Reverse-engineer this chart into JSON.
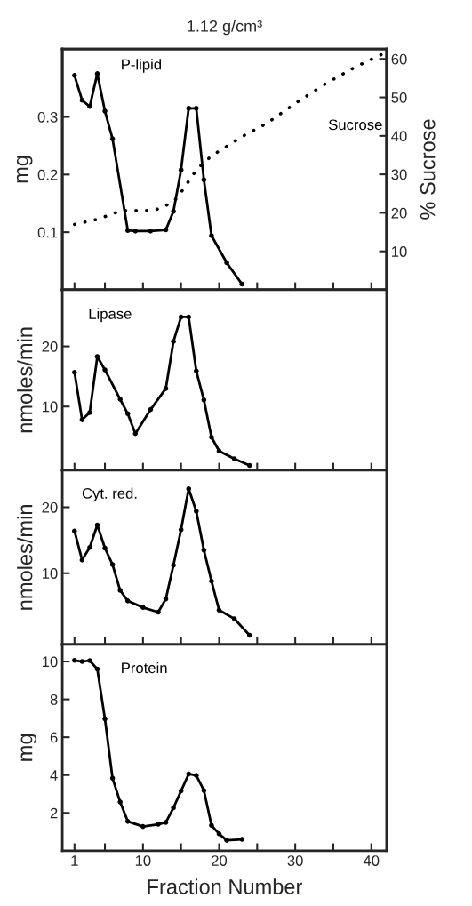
{
  "chart_data": [
    {
      "type": "line",
      "title": "1.12 g/cm³",
      "ylabel": "mg",
      "y2label": "% Sucrose",
      "xlim": [
        -0.6,
        42
      ],
      "xticks": [
        1,
        {
          "value": 5,
          "label": null
        },
        10,
        {
          "value": 15,
          "label": null
        },
        20,
        {
          "value": 25,
          "label": null
        },
        30,
        {
          "value": 35,
          "label": null
        },
        40
      ],
      "ylim": [
        0,
        0.418
      ],
      "yticks": [
        0.1,
        0.2,
        0.3
      ],
      "y2lim": [
        0,
        62.6
      ],
      "y2ticks": [
        10,
        20,
        30,
        40,
        50,
        60
      ],
      "tick_labels": "y",
      "marker": "circle",
      "line_style": "solid",
      "series": [
        {
          "name": "P-lipid",
          "color": "#000000",
          "x": [
            1,
            2,
            3,
            4,
            5,
            6,
            8,
            9,
            11,
            13,
            14,
            15,
            16,
            17,
            18,
            19,
            21,
            23
          ],
          "values": [
            0.372,
            0.329,
            0.318,
            0.375,
            0.31,
            0.262,
            0.103,
            0.102,
            0.102,
            0.104,
            0.136,
            0.208,
            0.315,
            0.315,
            0.191,
            0.094,
            0.047,
            0.01
          ]
        },
        {
          "name": "Sucrose",
          "color": "#000000",
          "axis": "y2",
          "marker": "none",
          "line_style": "dotted",
          "x": [
            1,
            4,
            7.2,
            11,
            12.2,
            13.2,
            14.2,
            15.1,
            17.1,
            19,
            23.1,
            26.3,
            30.2,
            34.1,
            38,
            41.3
          ],
          "values": [
            17,
            18.3,
            20.6,
            20.6,
            21.1,
            22.1,
            23.3,
            25.6,
            31.4,
            34.8,
            39.9,
            43.3,
            48.7,
            53.7,
            58,
            61.1
          ]
        }
      ]
    },
    {
      "type": "line",
      "ylabel": "nmoles/min",
      "xlim": [
        -0.6,
        42
      ],
      "xticks": [
        1,
        {
          "value": 5,
          "label": null
        },
        10,
        {
          "value": 15,
          "label": null
        },
        20,
        {
          "value": 25,
          "label": null
        },
        30,
        {
          "value": 35,
          "label": null
        },
        40
      ],
      "ylim": [
        -0.6,
        29.4
      ],
      "yticks": [
        10,
        20
      ],
      "tick_labels": "y",
      "marker": "circle",
      "line_style": "solid",
      "series": [
        {
          "name": "Lipase",
          "color": "#000000",
          "x": [
            1,
            2,
            3,
            4,
            5,
            7,
            8,
            9,
            11,
            13,
            14,
            15,
            16,
            17,
            18,
            19,
            20,
            22,
            24
          ],
          "values": [
            15.7,
            7.8,
            9.0,
            18.3,
            16.1,
            11.2,
            8.8,
            5.5,
            9.5,
            13.0,
            20.8,
            24.9,
            24.9,
            15.9,
            11.1,
            4.9,
            2.6,
            1.3,
            0.2
          ]
        }
      ]
    },
    {
      "type": "line",
      "ylabel": "nmoles/min",
      "xlim": [
        -0.6,
        42
      ],
      "xticks": [
        1,
        {
          "value": 5,
          "label": null
        },
        10,
        {
          "value": 15,
          "label": null
        },
        20,
        {
          "value": 25,
          "label": null
        },
        30,
        {
          "value": 35,
          "label": null
        },
        40
      ],
      "ylim": [
        -0.8,
        25.6
      ],
      "yticks": [
        10,
        20
      ],
      "tick_labels": "y",
      "marker": "circle",
      "line_style": "solid",
      "series": [
        {
          "name": "Cyt. red.",
          "color": "#000000",
          "x": [
            1,
            2,
            3,
            4,
            5,
            6,
            7,
            8,
            10,
            12,
            13,
            14,
            15,
            16,
            17,
            18,
            19,
            20,
            22,
            24
          ],
          "values": [
            16.4,
            12.0,
            13.9,
            17.3,
            13.8,
            11.3,
            7.4,
            5.8,
            4.8,
            4.1,
            6.1,
            11.2,
            16.6,
            22.8,
            19.4,
            13.5,
            8.8,
            4.4,
            3.1,
            0.6
          ]
        }
      ]
    },
    {
      "type": "line",
      "ylabel": "mg",
      "xlabel": "Fraction Number",
      "xlim": [
        -0.6,
        42
      ],
      "xticks": [
        1,
        {
          "value": 5,
          "label": null
        },
        10,
        {
          "value": 15,
          "label": null
        },
        20,
        {
          "value": 25,
          "label": null
        },
        30,
        {
          "value": 35,
          "label": null
        },
        40
      ],
      "ylim": [
        0,
        10.9
      ],
      "yticks": [
        2,
        4,
        6,
        8,
        10
      ],
      "marker": "circle",
      "line_style": "solid",
      "series": [
        {
          "name": "Protein",
          "color": "#000000",
          "x": [
            1,
            2,
            3,
            4,
            5,
            6,
            7,
            8,
            10,
            12,
            13,
            14,
            15,
            16,
            17,
            18,
            19,
            20,
            21,
            23
          ],
          "values": [
            10.06,
            10.0,
            10.05,
            9.6,
            6.97,
            3.83,
            2.58,
            1.55,
            1.28,
            1.4,
            1.5,
            2.27,
            3.16,
            4.06,
            3.98,
            3.19,
            1.34,
            0.89,
            0.55,
            0.6
          ]
        }
      ]
    }
  ]
}
